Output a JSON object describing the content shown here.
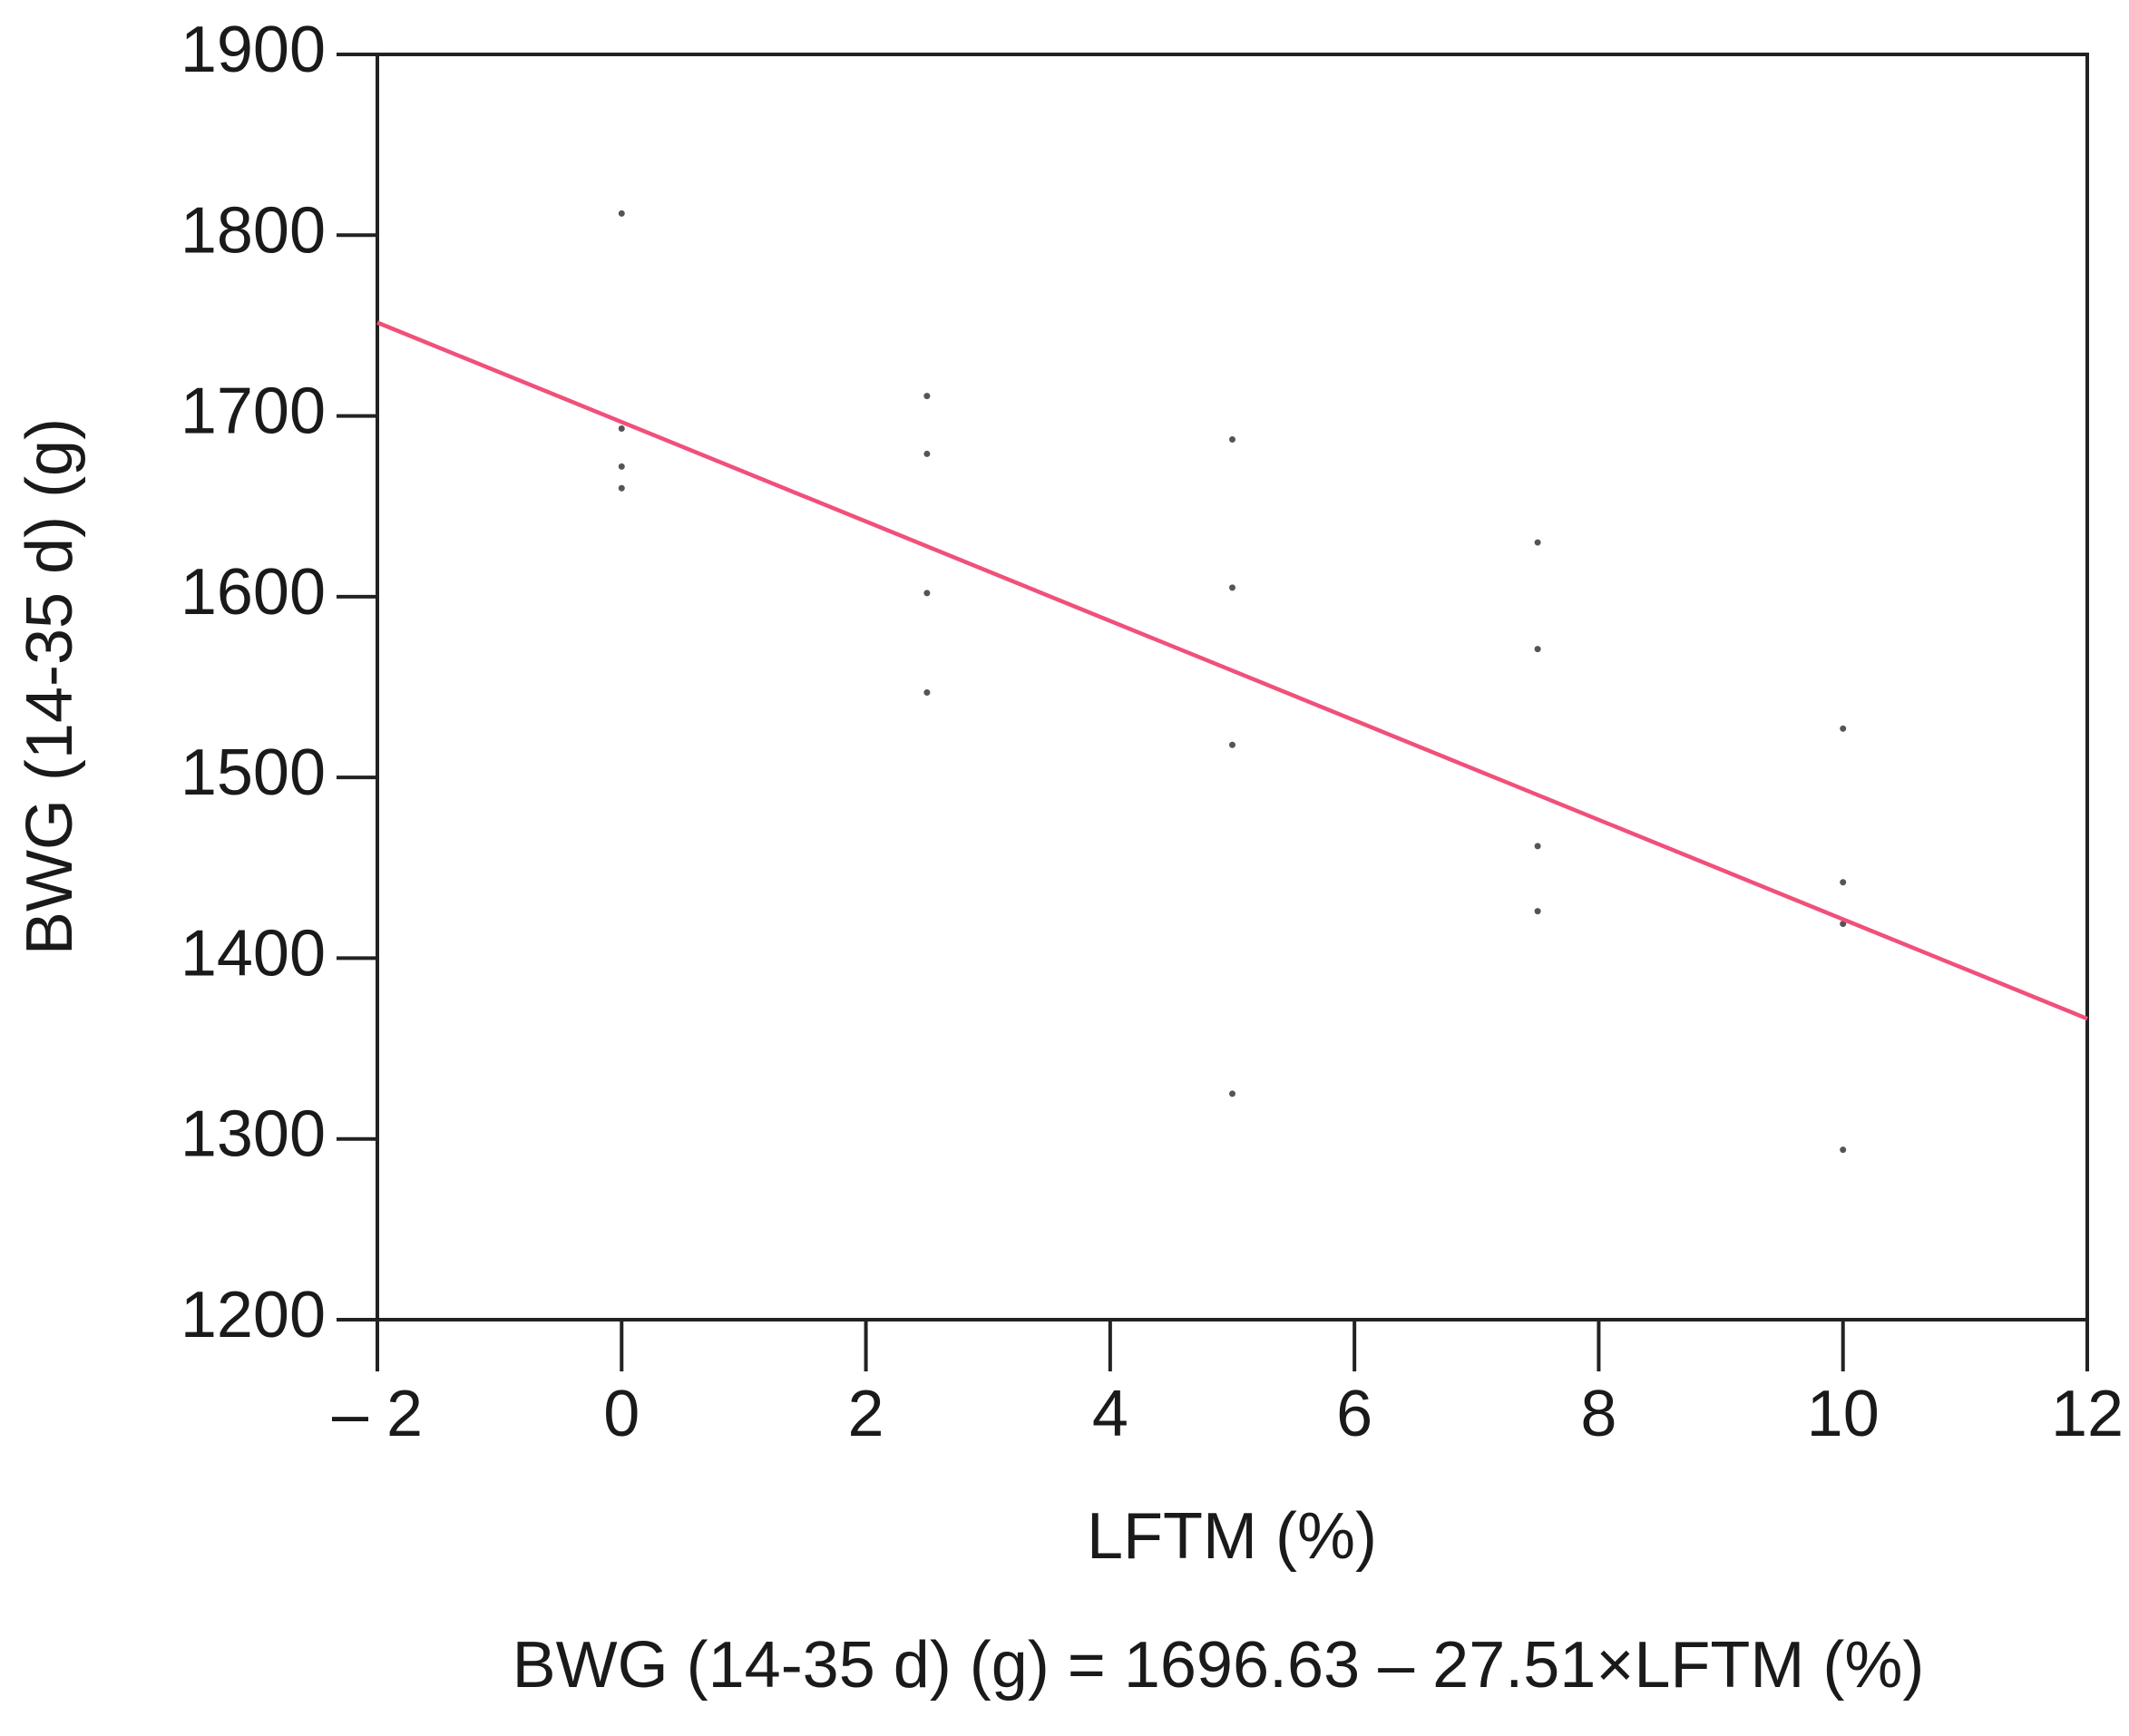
{
  "chart_data": {
    "type": "scatter",
    "x_label": "LFTM (%)",
    "y_label": "BWG (14-35 d) (g)",
    "equation": "BWG (14-35 d) (g) = 1696.63 – 27.51×LFTM (%)",
    "xlim": [
      -2,
      12
    ],
    "ylim": [
      1200,
      1900
    ],
    "xticks": [
      {
        "value": -2,
        "label": "– 2"
      },
      0,
      2,
      4,
      6,
      8,
      10,
      12
    ],
    "yticks": [
      1200,
      1300,
      1400,
      1500,
      1600,
      1700,
      1800,
      1900
    ],
    "grid": false,
    "series": [
      {
        "name": "observations",
        "kind": "points",
        "color": "#555555",
        "x": [
          0,
          0,
          0,
          0,
          2.5,
          2.5,
          2.5,
          2.5,
          5,
          5,
          5,
          5,
          7.5,
          7.5,
          7.5,
          7.5,
          10,
          10,
          10,
          10
        ],
        "values": [
          1812,
          1693,
          1672,
          1660,
          1711,
          1679,
          1602,
          1547,
          1687,
          1605,
          1518,
          1325,
          1630,
          1571,
          1462,
          1426,
          1527,
          1442,
          1419,
          1294
        ]
      },
      {
        "name": "fit",
        "kind": "line",
        "color": "#f0507a",
        "x": [
          -2,
          12
        ],
        "values": [
          1751.65,
          1366.51
        ]
      }
    ]
  }
}
